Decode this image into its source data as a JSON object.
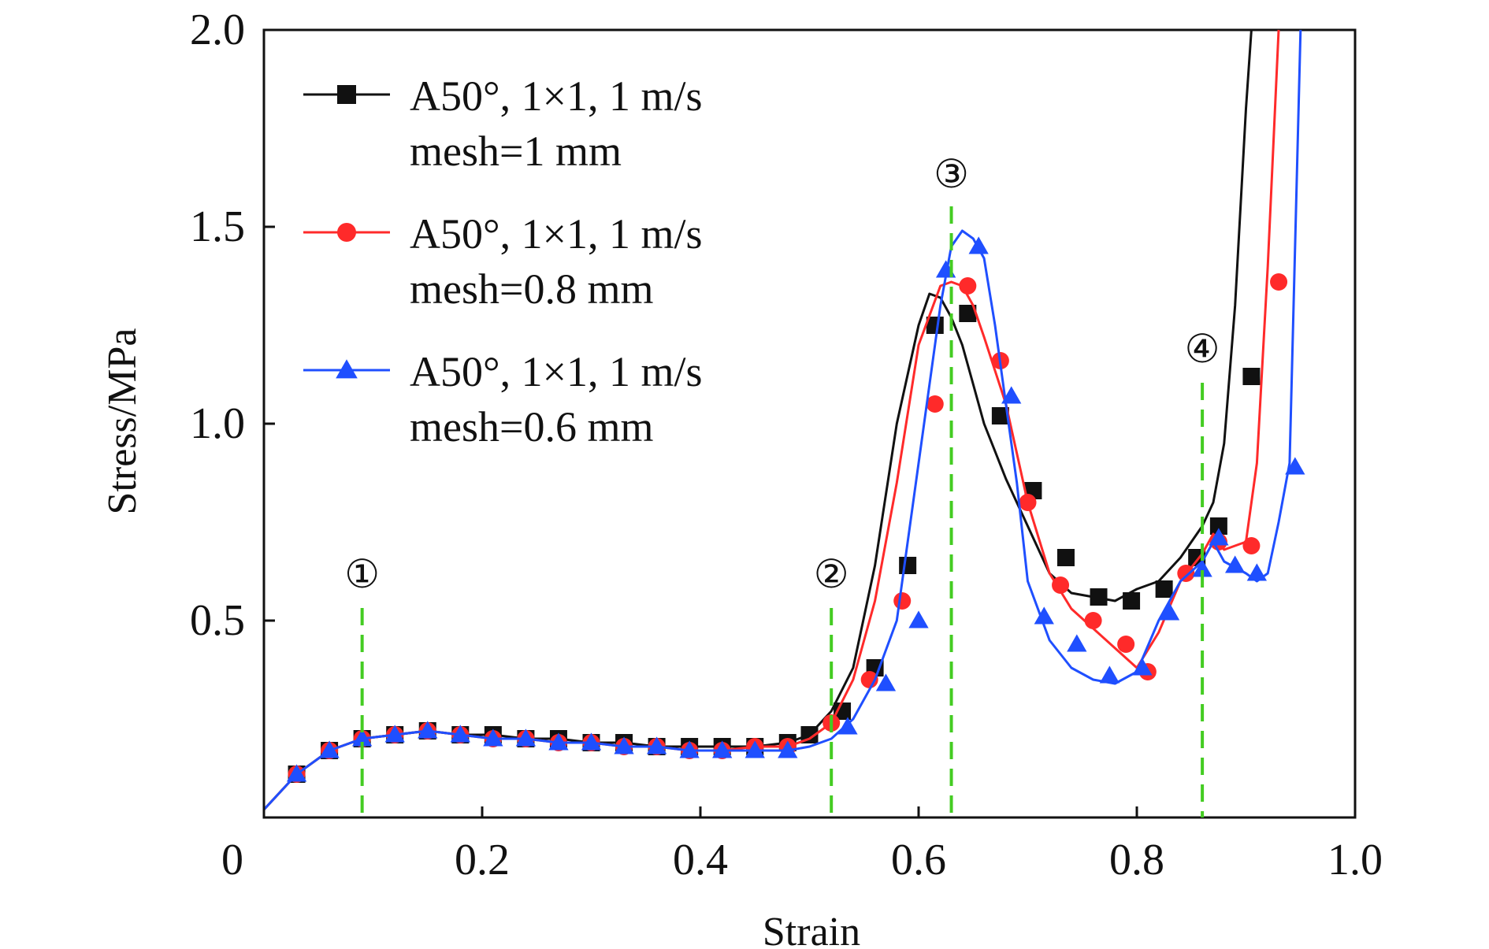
{
  "chart_data": {
    "type": "line",
    "title": "",
    "xlabel": "Strain",
    "ylabel": "Stress/MPa",
    "xlim": [
      0,
      1.0
    ],
    "ylim": [
      0,
      2.0
    ],
    "xticks": [
      0,
      0.2,
      0.4,
      0.6,
      0.8,
      1.0
    ],
    "xtick_labels": [
      "0",
      "0.2",
      "0.4",
      "0.6",
      "0.8",
      "1.0"
    ],
    "yticks": [
      0.5,
      1.0,
      1.5,
      2.0
    ],
    "ytick_labels": [
      "0.5",
      "1.0",
      "1.5",
      "2.0"
    ],
    "grid": false,
    "legend_position": "top-left",
    "series": [
      {
        "name_line1": "A50°, 1×1, 1 m/s",
        "name_line2": "mesh=1 mm",
        "color": "#111111",
        "marker": "square",
        "x": [
          0.0,
          0.03,
          0.06,
          0.09,
          0.12,
          0.15,
          0.18,
          0.21,
          0.24,
          0.27,
          0.3,
          0.33,
          0.36,
          0.39,
          0.42,
          0.45,
          0.48,
          0.5,
          0.52,
          0.54,
          0.56,
          0.58,
          0.6,
          0.61,
          0.62,
          0.63,
          0.64,
          0.65,
          0.66,
          0.67,
          0.68,
          0.7,
          0.72,
          0.74,
          0.76,
          0.78,
          0.8,
          0.82,
          0.84,
          0.86,
          0.87,
          0.88,
          0.89,
          0.9,
          0.905
        ],
        "y": [
          0.02,
          0.11,
          0.17,
          0.2,
          0.21,
          0.22,
          0.21,
          0.21,
          0.2,
          0.2,
          0.19,
          0.19,
          0.18,
          0.18,
          0.18,
          0.18,
          0.19,
          0.21,
          0.27,
          0.38,
          0.64,
          1.0,
          1.25,
          1.33,
          1.32,
          1.27,
          1.2,
          1.1,
          1.0,
          0.93,
          0.86,
          0.74,
          0.62,
          0.57,
          0.56,
          0.55,
          0.58,
          0.6,
          0.66,
          0.74,
          0.8,
          0.95,
          1.3,
          1.8,
          2.0
        ],
        "marker_x": [
          0.03,
          0.06,
          0.09,
          0.12,
          0.15,
          0.18,
          0.21,
          0.24,
          0.27,
          0.3,
          0.33,
          0.36,
          0.39,
          0.42,
          0.45,
          0.48,
          0.5,
          0.53,
          0.56,
          0.59,
          0.615,
          0.645,
          0.675,
          0.705,
          0.735,
          0.765,
          0.795,
          0.825,
          0.855,
          0.875,
          0.905
        ],
        "marker_y": [
          0.11,
          0.17,
          0.2,
          0.21,
          0.22,
          0.21,
          0.21,
          0.2,
          0.2,
          0.19,
          0.19,
          0.18,
          0.18,
          0.18,
          0.18,
          0.19,
          0.21,
          0.27,
          0.38,
          0.64,
          1.25,
          1.28,
          1.02,
          0.83,
          0.66,
          0.56,
          0.55,
          0.58,
          0.66,
          0.74,
          1.12
        ]
      },
      {
        "name_line1": "A50°, 1×1, 1 m/s",
        "name_line2": "mesh=0.8 mm",
        "color": "#ff2a2a",
        "marker": "circle",
        "x": [
          0.0,
          0.03,
          0.06,
          0.09,
          0.12,
          0.15,
          0.18,
          0.21,
          0.24,
          0.27,
          0.3,
          0.33,
          0.36,
          0.39,
          0.42,
          0.45,
          0.48,
          0.5,
          0.52,
          0.54,
          0.56,
          0.58,
          0.6,
          0.62,
          0.63,
          0.64,
          0.65,
          0.66,
          0.68,
          0.7,
          0.72,
          0.74,
          0.76,
          0.78,
          0.8,
          0.82,
          0.84,
          0.86,
          0.87,
          0.88,
          0.9,
          0.91,
          0.92,
          0.93
        ],
        "y": [
          0.02,
          0.11,
          0.17,
          0.2,
          0.21,
          0.22,
          0.21,
          0.2,
          0.2,
          0.19,
          0.19,
          0.18,
          0.18,
          0.17,
          0.17,
          0.18,
          0.18,
          0.2,
          0.24,
          0.35,
          0.55,
          0.85,
          1.2,
          1.35,
          1.36,
          1.35,
          1.3,
          1.22,
          1.05,
          0.8,
          0.62,
          0.53,
          0.48,
          0.43,
          0.38,
          0.47,
          0.6,
          0.67,
          0.72,
          0.68,
          0.7,
          0.9,
          1.4,
          2.0
        ],
        "marker_x": [
          0.03,
          0.06,
          0.09,
          0.12,
          0.15,
          0.18,
          0.21,
          0.24,
          0.27,
          0.3,
          0.33,
          0.36,
          0.39,
          0.42,
          0.45,
          0.48,
          0.52,
          0.555,
          0.585,
          0.615,
          0.645,
          0.675,
          0.7,
          0.73,
          0.76,
          0.79,
          0.81,
          0.845,
          0.875,
          0.905,
          0.93
        ],
        "marker_y": [
          0.11,
          0.17,
          0.2,
          0.21,
          0.22,
          0.21,
          0.2,
          0.2,
          0.19,
          0.19,
          0.18,
          0.18,
          0.17,
          0.17,
          0.18,
          0.18,
          0.24,
          0.35,
          0.55,
          1.05,
          1.35,
          1.16,
          0.8,
          0.59,
          0.5,
          0.44,
          0.37,
          0.62,
          0.7,
          0.69,
          1.36
        ]
      },
      {
        "name_line1": "A50°, 1×1, 1 m/s",
        "name_line2": "mesh=0.6 mm",
        "color": "#1f4fff",
        "marker": "triangle",
        "x": [
          0.0,
          0.03,
          0.06,
          0.09,
          0.12,
          0.15,
          0.18,
          0.21,
          0.24,
          0.27,
          0.3,
          0.33,
          0.36,
          0.39,
          0.42,
          0.45,
          0.48,
          0.5,
          0.52,
          0.54,
          0.56,
          0.58,
          0.6,
          0.62,
          0.63,
          0.64,
          0.65,
          0.66,
          0.67,
          0.68,
          0.69,
          0.7,
          0.72,
          0.74,
          0.76,
          0.78,
          0.8,
          0.82,
          0.84,
          0.86,
          0.87,
          0.88,
          0.9,
          0.91,
          0.92,
          0.93,
          0.94,
          0.95
        ],
        "y": [
          0.02,
          0.11,
          0.17,
          0.2,
          0.21,
          0.22,
          0.21,
          0.2,
          0.2,
          0.19,
          0.19,
          0.18,
          0.18,
          0.17,
          0.17,
          0.17,
          0.17,
          0.18,
          0.2,
          0.25,
          0.35,
          0.5,
          0.9,
          1.3,
          1.45,
          1.49,
          1.47,
          1.42,
          1.25,
          1.05,
          0.85,
          0.6,
          0.45,
          0.38,
          0.35,
          0.34,
          0.37,
          0.5,
          0.6,
          0.65,
          0.7,
          0.65,
          0.62,
          0.6,
          0.62,
          0.75,
          0.9,
          2.0
        ],
        "marker_x": [
          0.03,
          0.06,
          0.09,
          0.12,
          0.15,
          0.18,
          0.21,
          0.24,
          0.27,
          0.3,
          0.33,
          0.36,
          0.39,
          0.42,
          0.45,
          0.48,
          0.535,
          0.57,
          0.6,
          0.625,
          0.655,
          0.685,
          0.715,
          0.745,
          0.775,
          0.805,
          0.83,
          0.86,
          0.875,
          0.89,
          0.91,
          0.945
        ],
        "marker_y": [
          0.11,
          0.17,
          0.2,
          0.21,
          0.22,
          0.21,
          0.2,
          0.2,
          0.19,
          0.19,
          0.18,
          0.18,
          0.17,
          0.17,
          0.17,
          0.17,
          0.23,
          0.34,
          0.5,
          1.39,
          1.45,
          1.07,
          0.51,
          0.44,
          0.36,
          0.38,
          0.52,
          0.63,
          0.71,
          0.64,
          0.62,
          0.89
        ]
      }
    ],
    "annotations": [
      {
        "label": "①",
        "x": 0.09
      },
      {
        "label": "②",
        "x": 0.52
      },
      {
        "label": "③",
        "x": 0.63
      },
      {
        "label": "④",
        "x": 0.86
      }
    ],
    "annotation_color": "#44cc22"
  }
}
